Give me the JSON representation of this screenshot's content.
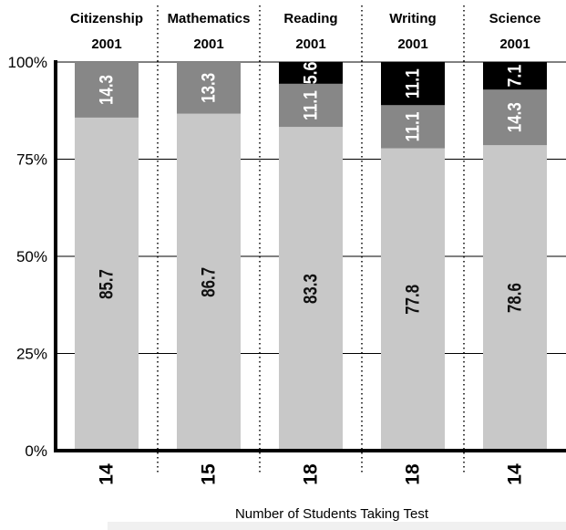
{
  "chart_data": {
    "type": "bar",
    "stacked": true,
    "categories": [
      {
        "subject": "Citizenship",
        "year": "2001"
      },
      {
        "subject": "Mathematics",
        "year": "2001"
      },
      {
        "subject": "Reading",
        "year": "2001"
      },
      {
        "subject": "Writing",
        "year": "2001"
      },
      {
        "subject": "Science",
        "year": "2001"
      }
    ],
    "series": [
      {
        "color": "#c8c8c8",
        "label_color": "#111111",
        "values": [
          85.7,
          86.7,
          83.3,
          77.8,
          78.6
        ]
      },
      {
        "color": "#878787",
        "label_color": "#ffffff",
        "values": [
          14.3,
          13.3,
          11.1,
          11.1,
          14.3
        ]
      },
      {
        "color": "#000000",
        "label_color": "#ffffff",
        "values": [
          0,
          0,
          5.6,
          11.1,
          7.1
        ]
      }
    ],
    "data_labels": [
      [
        "85.7",
        "86.7",
        "83.3",
        "77.8",
        "78.6"
      ],
      [
        "14.3",
        "13.3",
        "11.1",
        "11.1",
        "14.3"
      ],
      [
        "",
        "",
        "5.6",
        "11.1",
        "7.1"
      ]
    ],
    "counts": [
      "14",
      "15",
      "18",
      "18",
      "14"
    ],
    "y_ticks": [
      {
        "value": 0,
        "label": "0%"
      },
      {
        "value": 25,
        "label": "25%"
      },
      {
        "value": 50,
        "label": "50%"
      },
      {
        "value": 75,
        "label": "75%"
      },
      {
        "value": 100,
        "label": "100%"
      }
    ],
    "ylim": [
      0,
      100
    ],
    "xlabel": "Number of Students Taking Test",
    "grid": true
  }
}
